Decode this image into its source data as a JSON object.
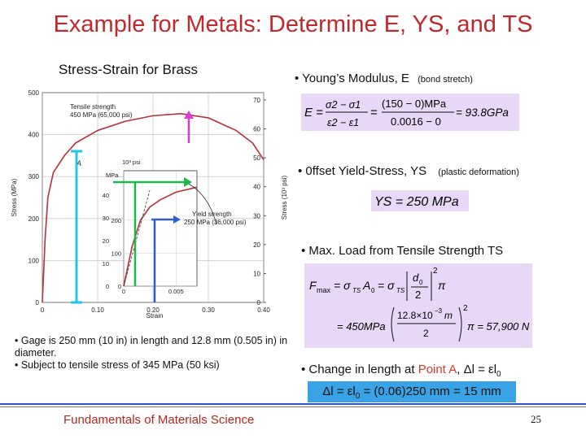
{
  "title": "Example for Metals: Determine E, YS, and TS",
  "chart_title": "Stress-Strain for Brass",
  "bullets": {
    "youngs": "• Young’s Modulus, E",
    "youngs_note": "(bond stretch)",
    "yield": "• 0ffset Yield-Stress, YS",
    "yield_note": "(plastic deformation)",
    "maxload": "• Max. Load from Tensile Strength TS",
    "change_prefix": "• Change in length at ",
    "change_point": "Point A",
    "change_suffix": ", Δl = εl",
    "change_sub": "0"
  },
  "formulas": {
    "E_lhs": "E =",
    "E_num": "σ2 − σ1",
    "E_den": "ε2 − ε1",
    "E_eq": "=",
    "E_num2": "(150 − 0)MPa",
    "E_den2": "0.0016 − 0",
    "E_result": "= 93.8GPa",
    "YS": "YS = 250 MPa",
    "F_line1_lhs": "F",
    "F_line1_sub": "max",
    "F_line1_mid": "= σ",
    "F_line1_TS": "TS",
    "F_line1_A": "A",
    "F_line1_A0": "0",
    "F_line1_eq2": "= σ",
    "F_line1_TS2": "TS",
    "F_line1_d": "d",
    "F_line1_d0": "0",
    "F_line1_2": "2",
    "F_line1_pi": "π",
    "F_line2_val": "= 450MPa",
    "F_line2_num": "12.8×10",
    "F_line2_exp": "−3",
    "F_line2_m": "m",
    "F_line2_den": "2",
    "F_line2_pow": "2",
    "F_line2_result": "π = 57,900 N",
    "delta_l": "Δl = εl",
    "delta_sub": "0",
    "delta_rest": " = (0.06)250 mm = 15 mm"
  },
  "notes": [
    "• Gage is 250 mm (10 in) in length and 12.8 mm (0.505 in) in diameter.",
    "• Subject to tensile stress of 345 MPa (50 ksi)"
  ],
  "footer": "Fundamentals of Materials Science",
  "page_number": "25",
  "chart_data": {
    "type": "line",
    "xlabel": "Strain",
    "ylabel_left": "Stress (MPa)",
    "ylabel_right": "Stress (10³ psi)",
    "x_ticks": [
      "0",
      "0.10",
      "0.20",
      "0.30",
      "0.40"
    ],
    "y_ticks_left": [
      "0",
      "100",
      "200",
      "300",
      "400",
      "500"
    ],
    "y_ticks_right": [
      "0",
      "10",
      "20",
      "30",
      "40",
      "50",
      "60",
      "70"
    ],
    "xlim": [
      0,
      0.4
    ],
    "ylim": [
      0,
      500
    ],
    "annotation_tensile": [
      "Tensile strength",
      "450 MPa (65,000 psi)"
    ],
    "annotation_point": "A",
    "annotation_yield": [
      "Yield strength",
      "250 MPa (36,000 psi)"
    ],
    "inset": {
      "x_ticks": [
        "0",
        "0.005"
      ],
      "y_ticks_mpa": [
        "0",
        "100",
        "200"
      ],
      "y_ticks_psi": [
        "0",
        "10",
        "20",
        "30",
        "40"
      ],
      "label_psi": "10³ psi",
      "label_mpa": "MPa"
    },
    "curve_main": [
      [
        0,
        0
      ],
      [
        0.005,
        150
      ],
      [
        0.01,
        250
      ],
      [
        0.02,
        310
      ],
      [
        0.04,
        350
      ],
      [
        0.06,
        380
      ],
      [
        0.1,
        410
      ],
      [
        0.15,
        432
      ],
      [
        0.2,
        445
      ],
      [
        0.25,
        450
      ],
      [
        0.3,
        440
      ],
      [
        0.35,
        410
      ],
      [
        0.38,
        380
      ],
      [
        0.4,
        340
      ]
    ]
  },
  "colors": {
    "title": "#c0282d",
    "curve": "#b5303a",
    "cyan_line": "#22c7e6",
    "green_line": "#1fb845",
    "magenta_line": "#d93bd6",
    "blue_line": "#2d5ecf",
    "formula_bg": "#e8d7f7",
    "footer_text": "#b6261e"
  }
}
